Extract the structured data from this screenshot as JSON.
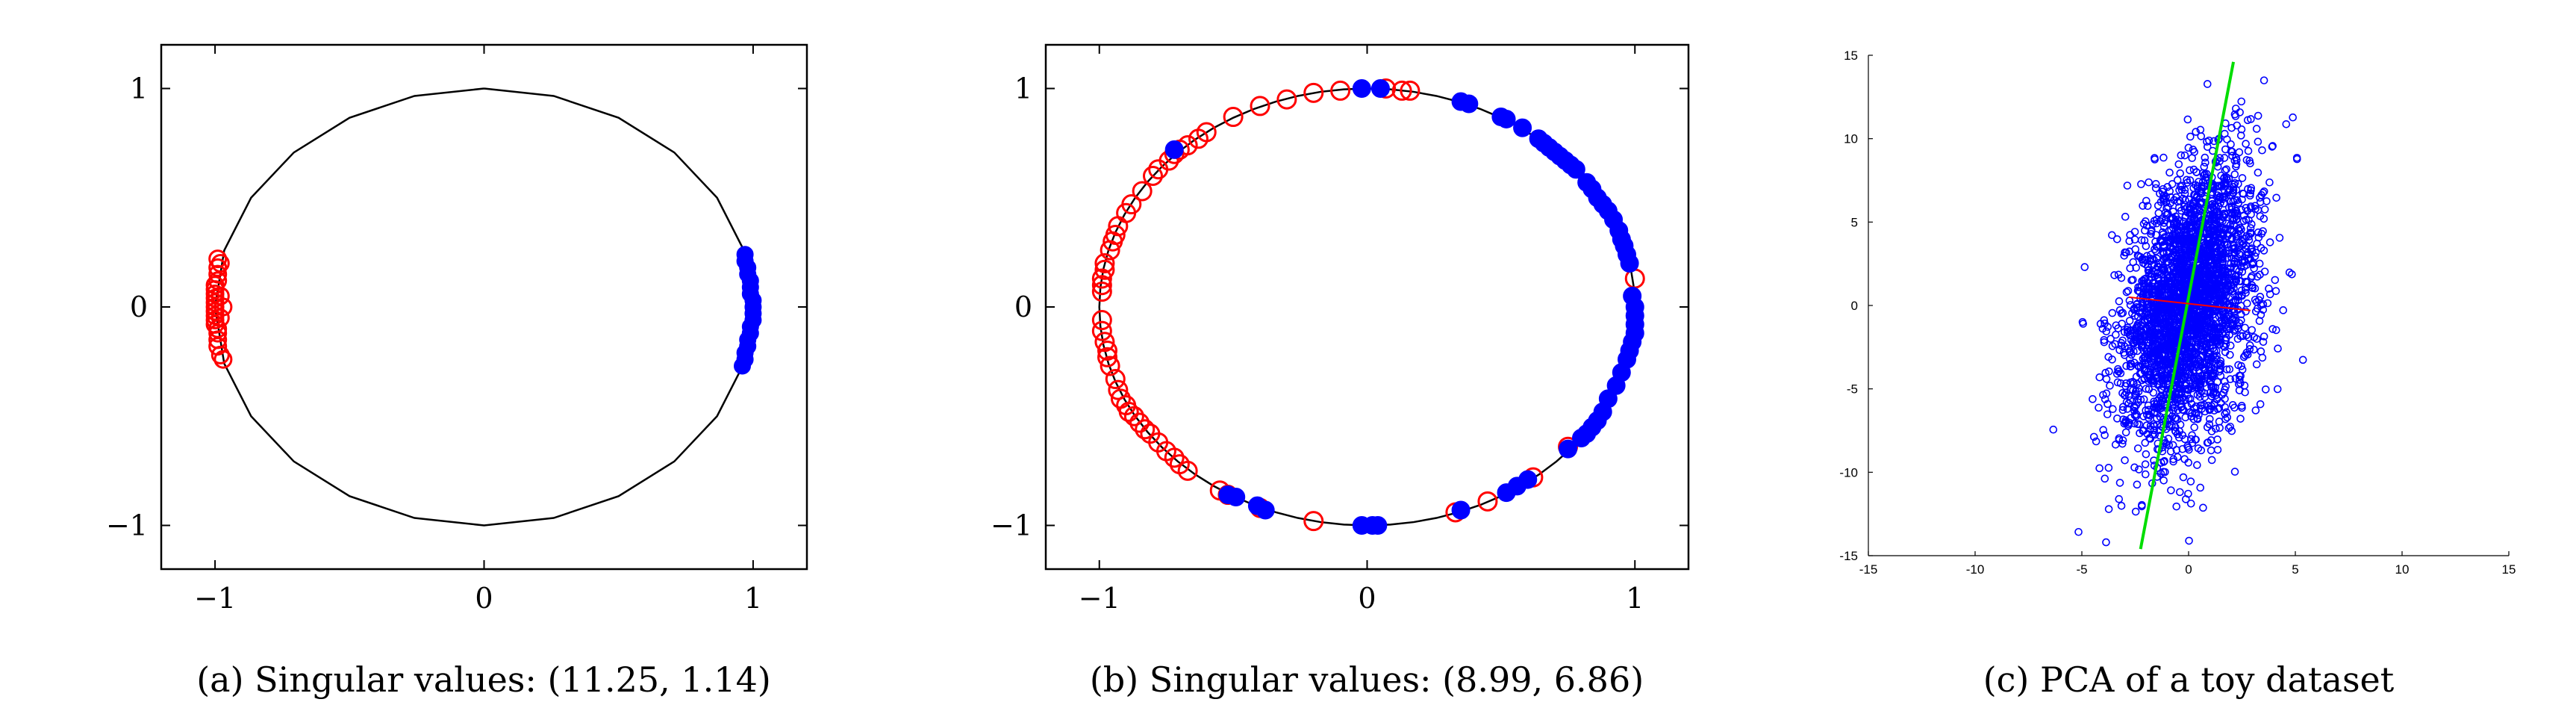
{
  "chart_data": [
    {
      "type": "scatter",
      "caption": "(a) Singular values: (11.25, 1.14)",
      "xlim": [
        -1.2,
        1.2
      ],
      "ylim": [
        -1.2,
        1.2
      ],
      "xticks": [
        -1,
        0,
        1
      ],
      "yticks": [
        -1,
        0,
        1
      ],
      "xtick_labels": [
        "−1",
        "0",
        "1"
      ],
      "ytick_labels": [
        "−1",
        "0",
        "1"
      ],
      "grid": false,
      "circle": {
        "polygon_sides": 24,
        "radius": 1
      },
      "series": [
        {
          "marker": "open-circle",
          "color": "#ff0000",
          "points": [
            [
              -0.99,
              0.22
            ],
            [
              -0.99,
              0.18
            ],
            [
              -0.99,
              0.15
            ],
            [
              -0.99,
              0.12
            ],
            [
              -1.0,
              0.1
            ],
            [
              -1.0,
              0.08
            ],
            [
              -1.0,
              0.06
            ],
            [
              -1.0,
              0.04
            ],
            [
              -1.0,
              0.02
            ],
            [
              -1.0,
              0.0
            ],
            [
              -1.0,
              -0.02
            ],
            [
              -1.0,
              -0.04
            ],
            [
              -1.0,
              -0.06
            ],
            [
              -1.0,
              -0.08
            ],
            [
              -0.99,
              -0.1
            ],
            [
              -0.99,
              -0.12
            ],
            [
              -0.99,
              -0.15
            ],
            [
              -0.99,
              -0.18
            ],
            [
              -0.98,
              -0.22
            ],
            [
              -0.97,
              -0.24
            ],
            [
              -0.98,
              0.2
            ],
            [
              -0.98,
              0.05
            ],
            [
              -0.98,
              -0.05
            ],
            [
              -0.97,
              0.0
            ]
          ]
        },
        {
          "marker": "filled-circle",
          "color": "#0000ff",
          "points": [
            [
              0.97,
              0.24
            ],
            [
              0.97,
              0.21
            ],
            [
              0.98,
              0.18
            ],
            [
              0.98,
              0.15
            ],
            [
              0.99,
              0.12
            ],
            [
              0.99,
              0.09
            ],
            [
              0.99,
              0.06
            ],
            [
              1.0,
              0.03
            ],
            [
              1.0,
              0.0
            ],
            [
              1.0,
              -0.03
            ],
            [
              1.0,
              -0.06
            ],
            [
              0.99,
              -0.09
            ],
            [
              0.99,
              -0.12
            ],
            [
              0.98,
              -0.15
            ],
            [
              0.98,
              -0.18
            ],
            [
              0.97,
              -0.21
            ],
            [
              0.97,
              -0.24
            ],
            [
              0.96,
              -0.27
            ]
          ]
        }
      ]
    },
    {
      "type": "scatter",
      "caption": "(b) Singular values: (8.99, 6.86)",
      "xlim": [
        -1.2,
        1.2
      ],
      "ylim": [
        -1.2,
        1.2
      ],
      "xticks": [
        -1,
        0,
        1
      ],
      "yticks": [
        -1,
        0,
        1
      ],
      "xtick_labels": [
        "−1",
        "0",
        "1"
      ],
      "ytick_labels": [
        "−1",
        "0",
        "1"
      ],
      "grid": false,
      "circle": {
        "polygon_sides": 72,
        "radius": 1
      },
      "series": [
        {
          "marker": "open-circle",
          "color": "#ff0000",
          "points": [
            [
              -0.99,
              0.07
            ],
            [
              -0.99,
              0.1
            ],
            [
              -0.99,
              0.13
            ],
            [
              -0.98,
              0.17
            ],
            [
              -0.98,
              0.2
            ],
            [
              -0.96,
              0.26
            ],
            [
              -0.95,
              0.3
            ],
            [
              -0.94,
              0.33
            ],
            [
              -0.93,
              0.37
            ],
            [
              -0.9,
              0.43
            ],
            [
              -0.88,
              0.47
            ],
            [
              -0.84,
              0.53
            ],
            [
              -0.8,
              0.6
            ],
            [
              -0.78,
              0.63
            ],
            [
              -0.74,
              0.67
            ],
            [
              -0.72,
              0.7
            ],
            [
              -0.7,
              0.72
            ],
            [
              -0.67,
              0.74
            ],
            [
              -0.63,
              0.77
            ],
            [
              -0.6,
              0.8
            ],
            [
              -0.5,
              0.87
            ],
            [
              -0.4,
              0.92
            ],
            [
              -0.3,
              0.95
            ],
            [
              -0.2,
              0.98
            ],
            [
              -0.1,
              0.99
            ],
            [
              0.07,
              1.0
            ],
            [
              0.13,
              0.99
            ],
            [
              0.16,
              0.99
            ],
            [
              -0.99,
              -0.06
            ],
            [
              -0.99,
              -0.11
            ],
            [
              -0.98,
              -0.16
            ],
            [
              -0.97,
              -0.2
            ],
            [
              -0.97,
              -0.23
            ],
            [
              -0.96,
              -0.27
            ],
            [
              -0.94,
              -0.33
            ],
            [
              -0.93,
              -0.38
            ],
            [
              -0.92,
              -0.42
            ],
            [
              -0.9,
              -0.45
            ],
            [
              -0.89,
              -0.48
            ],
            [
              -0.87,
              -0.5
            ],
            [
              -0.85,
              -0.53
            ],
            [
              -0.83,
              -0.56
            ],
            [
              -0.81,
              -0.58
            ],
            [
              -0.78,
              -0.62
            ],
            [
              -0.75,
              -0.66
            ],
            [
              -0.72,
              -0.69
            ],
            [
              -0.7,
              -0.72
            ],
            [
              -0.67,
              -0.75
            ],
            [
              -0.55,
              -0.84
            ],
            [
              -0.52,
              -0.86
            ],
            [
              -0.4,
              -0.92
            ],
            [
              -0.2,
              -0.98
            ],
            [
              0.33,
              -0.94
            ],
            [
              0.45,
              -0.89
            ],
            [
              0.62,
              -0.78
            ],
            [
              0.75,
              -0.64
            ],
            [
              1.0,
              0.13
            ]
          ]
        },
        {
          "marker": "filled-circle",
          "color": "#0000ff",
          "points": [
            [
              -0.72,
              0.72
            ],
            [
              -0.02,
              1.0
            ],
            [
              0.05,
              1.0
            ],
            [
              0.35,
              0.94
            ],
            [
              0.38,
              0.93
            ],
            [
              0.5,
              0.87
            ],
            [
              0.52,
              0.86
            ],
            [
              0.58,
              0.82
            ],
            [
              0.64,
              0.77
            ],
            [
              0.66,
              0.75
            ],
            [
              0.68,
              0.73
            ],
            [
              0.7,
              0.71
            ],
            [
              0.72,
              0.69
            ],
            [
              0.74,
              0.67
            ],
            [
              0.76,
              0.65
            ],
            [
              0.78,
              0.63
            ],
            [
              0.82,
              0.57
            ],
            [
              0.84,
              0.54
            ],
            [
              0.86,
              0.5
            ],
            [
              0.88,
              0.47
            ],
            [
              0.9,
              0.44
            ],
            [
              0.92,
              0.4
            ],
            [
              0.94,
              0.35
            ],
            [
              0.95,
              0.31
            ],
            [
              0.96,
              0.28
            ],
            [
              0.97,
              0.24
            ],
            [
              0.98,
              0.2
            ],
            [
              0.99,
              0.05
            ],
            [
              1.0,
              0.0
            ],
            [
              1.0,
              -0.04
            ],
            [
              1.0,
              -0.08
            ],
            [
              1.0,
              -0.12
            ],
            [
              0.99,
              -0.16
            ],
            [
              0.98,
              -0.2
            ],
            [
              0.97,
              -0.24
            ],
            [
              0.95,
              -0.3
            ],
            [
              0.93,
              -0.36
            ],
            [
              0.9,
              -0.42
            ],
            [
              0.88,
              -0.48
            ],
            [
              0.86,
              -0.52
            ],
            [
              0.84,
              -0.55
            ],
            [
              0.82,
              -0.58
            ],
            [
              0.8,
              -0.6
            ],
            [
              0.75,
              -0.65
            ],
            [
              0.6,
              -0.79
            ],
            [
              0.56,
              -0.82
            ],
            [
              0.52,
              -0.85
            ],
            [
              0.35,
              -0.93
            ],
            [
              0.02,
              -1.0
            ],
            [
              0.04,
              -1.0
            ],
            [
              -0.02,
              -1.0
            ],
            [
              -0.38,
              -0.93
            ],
            [
              -0.41,
              -0.91
            ],
            [
              -0.49,
              -0.87
            ],
            [
              -0.52,
              -0.86
            ]
          ]
        }
      ]
    },
    {
      "type": "scatter",
      "caption": "(c) PCA of a toy dataset",
      "xlim": [
        -15,
        15
      ],
      "ylim": [
        -15,
        15
      ],
      "xticks": [
        -15,
        -10,
        -5,
        0,
        5,
        10,
        15
      ],
      "yticks": [
        -15,
        -10,
        -5,
        0,
        5,
        10,
        15
      ],
      "xtick_labels": [
        "-15",
        "-10",
        "-5",
        "0",
        "5",
        "10",
        "15"
      ],
      "ytick_labels": [
        "-15",
        "-10",
        "-5",
        "0",
        "5",
        "10",
        "15"
      ],
      "grid": false,
      "cloud": {
        "marker": "open-circle",
        "color": "#0000ff",
        "n": 3000,
        "center": [
          0,
          0
        ],
        "principal_std": 4.2,
        "minor_std": 0.9,
        "principal_slope": 6.5
      },
      "lines": [
        {
          "color": "#00dd00",
          "x": [
            -2.25,
            2.1
          ],
          "y": [
            -14.6,
            14.6
          ]
        },
        {
          "color": "#ff0000",
          "x": [
            -2.8,
            2.9
          ],
          "y": [
            0.5,
            -0.3
          ]
        }
      ]
    }
  ]
}
